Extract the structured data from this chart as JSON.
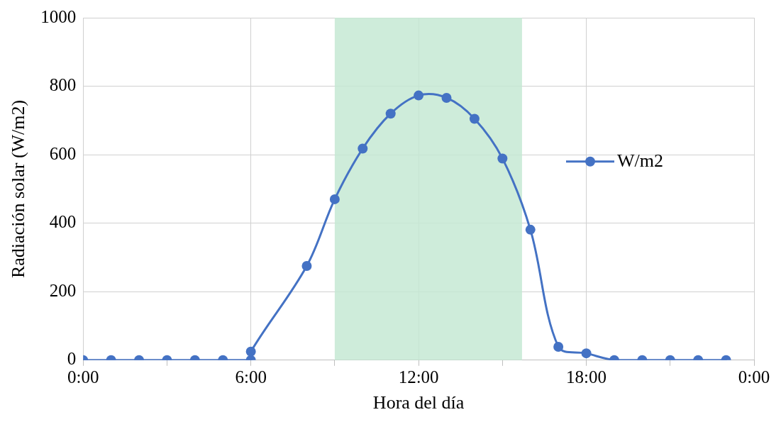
{
  "chart_data": {
    "type": "line",
    "xlabel": "Hora del día",
    "ylabel": "Radiación solar (W/m2)",
    "x": [
      0,
      1,
      2,
      3,
      4,
      5,
      6,
      6,
      8,
      9,
      10,
      11,
      12,
      13,
      14,
      15,
      16,
      17,
      18,
      19,
      20,
      21,
      22,
      23
    ],
    "series": [
      {
        "name": "W/m2",
        "color": "#4472c4",
        "values": [
          0,
          0,
          0,
          0,
          0,
          0,
          0,
          25,
          275,
          470,
          618,
          720,
          773,
          766,
          705,
          589,
          381,
          39,
          20,
          0,
          0,
          0,
          0,
          0
        ]
      }
    ],
    "xlim": [
      0,
      24
    ],
    "xticks": [
      {
        "value": 0,
        "label": "0:00"
      },
      {
        "value": 3,
        "label": null
      },
      {
        "value": 6,
        "label": "6:00"
      },
      {
        "value": 9,
        "label": null
      },
      {
        "value": 12,
        "label": "12:00"
      },
      {
        "value": 15,
        "label": null
      },
      {
        "value": 18,
        "label": "18:00"
      },
      {
        "value": 21,
        "label": null
      },
      {
        "value": 24,
        "label": "0:00"
      }
    ],
    "ylim": [
      0,
      1000
    ],
    "yticks": [
      0,
      200,
      400,
      600,
      800,
      1000
    ],
    "bands": [
      {
        "axis": "x",
        "from": 9,
        "to": 15.7,
        "color": "#c6e9d4"
      }
    ],
    "grid": true,
    "legend": "right",
    "marker": "circle",
    "line_style": "solid"
  }
}
